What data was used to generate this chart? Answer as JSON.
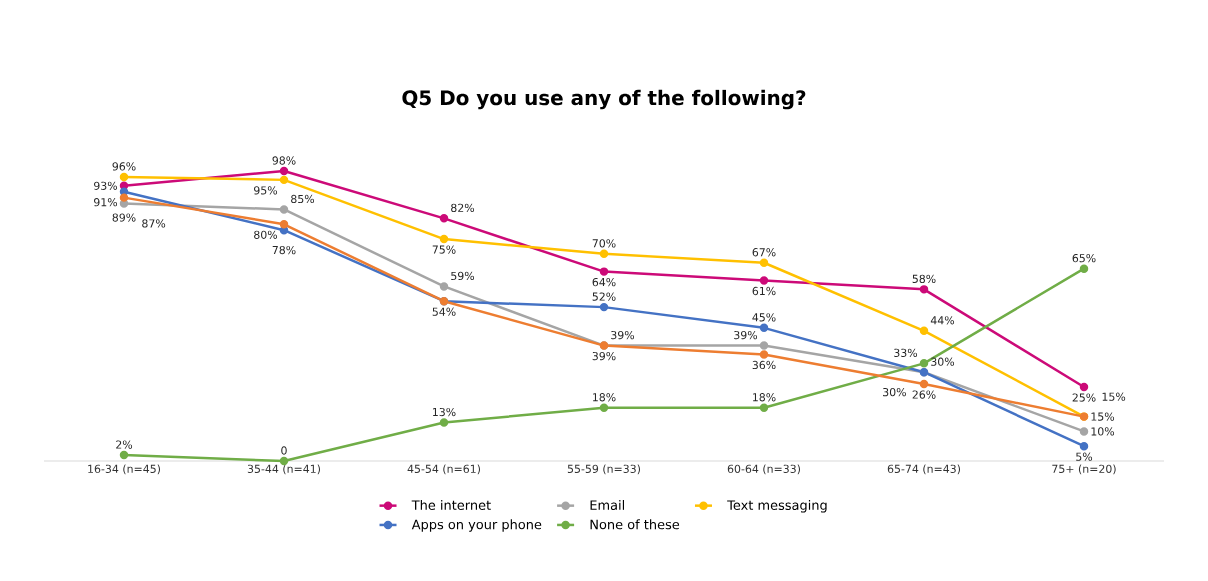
{
  "chart_data": {
    "type": "line",
    "title": "Q5 Do you use any of the following?",
    "categories": [
      "16-34 (n=45)",
      "35-44 (n=41)",
      "45-54 (n=61)",
      "55-59 (n=33)",
      "60-64 (n=33)",
      "65-74 (n=43)",
      "75+ (n=20)"
    ],
    "tick_labels": "x",
    "marker": "circle",
    "legend": "bottom",
    "series": [
      {
        "name": "The internet",
        "color": "#cc0a78",
        "values": [
          93,
          98,
          82,
          64,
          61,
          58,
          25
        ],
        "value_labels": [
          "93%",
          "98%",
          "82%",
          "64%",
          "61%",
          "58%",
          "25%"
        ]
      },
      {
        "color": "#ed7d31",
        "values": [
          89,
          80,
          54,
          39,
          36,
          26,
          15
        ],
        "value_labels": [
          "89%",
          "80%",
          null,
          "39%",
          "36%",
          "26%",
          "15%"
        ]
      },
      {
        "name": "Email",
        "color": "#a5a5a5",
        "values": [
          87,
          85,
          59,
          39,
          39,
          30,
          10
        ],
        "value_labels": [
          "87%",
          "85%",
          "59%",
          "39%",
          "39%",
          "30%",
          "10%"
        ]
      },
      {
        "name": "Text messaging",
        "color": "#ffc000",
        "values": [
          96,
          95,
          75,
          70,
          67,
          44,
          15
        ],
        "value_labels": [
          "96%",
          "95%",
          "75%",
          "70%",
          "67%",
          "44%",
          "15%"
        ]
      },
      {
        "name": "Apps on your phone",
        "color": "#4472c4",
        "values": [
          91,
          78,
          54,
          52,
          45,
          30,
          5
        ],
        "value_labels": [
          "91%",
          "78%",
          "54%",
          "52%",
          "45%",
          "30%",
          "5%"
        ]
      },
      {
        "name": "None of these",
        "color": "#70ad47",
        "values": [
          2,
          0,
          13,
          18,
          18,
          33,
          65
        ],
        "value_labels": [
          "2%",
          "0",
          "13%",
          "18%",
          "18%",
          "33%",
          "65%"
        ]
      }
    ]
  }
}
